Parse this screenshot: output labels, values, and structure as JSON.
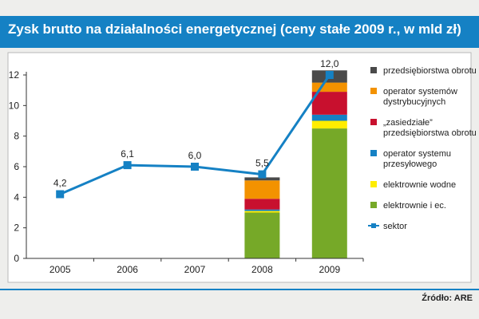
{
  "title": "Zysk brutto na działalności energetycznej (ceny stałe 2009 r., w mld zł)",
  "source": "Źródło: ARE",
  "chart_data": {
    "type": "bar",
    "categories": [
      "2005",
      "2006",
      "2007",
      "2008",
      "2009"
    ],
    "ylim": [
      0,
      12
    ],
    "yticks": [
      0,
      2,
      4,
      6,
      8,
      10,
      12
    ],
    "grid": false,
    "legend_position": "right",
    "stacked_series": [
      {
        "name": "przedsiębiorstwa obrotu",
        "color": "#4a4a4a",
        "values": [
          null,
          null,
          null,
          0.2,
          0.8
        ]
      },
      {
        "name": "operator systemów dystrybucyjnych",
        "color": "#f39200",
        "values": [
          null,
          null,
          null,
          1.2,
          0.6
        ]
      },
      {
        "name": "„zasiedziałe” przedsiębiorstwa obrotu",
        "color": "#c8102e",
        "values": [
          null,
          null,
          null,
          0.7,
          1.5
        ]
      },
      {
        "name": "operator systemu przesyłowego",
        "color": "#1581c4",
        "values": [
          null,
          null,
          null,
          0.1,
          0.4
        ]
      },
      {
        "name": "elektrownie wodne",
        "color": "#ffed00",
        "values": [
          null,
          null,
          null,
          0.1,
          0.5
        ]
      },
      {
        "name": "elektrownie i ec.",
        "color": "#76a928",
        "values": [
          null,
          null,
          null,
          3.0,
          8.5
        ]
      }
    ],
    "line_series": {
      "name": "sektor",
      "color": "#1581c4",
      "values": [
        4.2,
        6.1,
        6.0,
        5.5,
        12.0
      ],
      "labels": [
        "4,2",
        "6,1",
        "6,0",
        "5,5",
        "12,0"
      ]
    }
  }
}
